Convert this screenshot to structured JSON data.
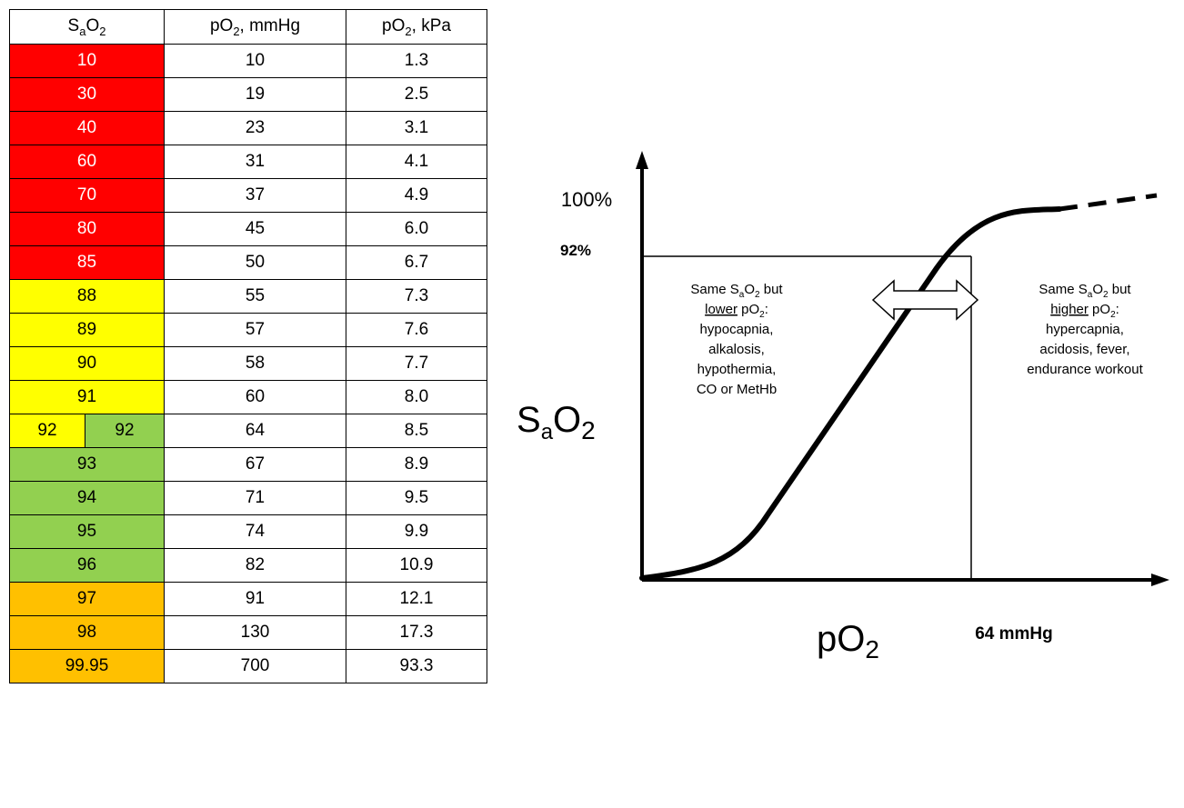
{
  "table": {
    "headers": [
      "SₐO₂",
      "pO₂, mmHg",
      "pO₂, kPa"
    ],
    "rows": [
      {
        "sat": "10",
        "mmhg": "10",
        "kpa": "1.3",
        "zone": "red"
      },
      {
        "sat": "30",
        "mmhg": "19",
        "kpa": "2.5",
        "zone": "red"
      },
      {
        "sat": "40",
        "mmhg": "23",
        "kpa": "3.1",
        "zone": "red"
      },
      {
        "sat": "60",
        "mmhg": "31",
        "kpa": "4.1",
        "zone": "red"
      },
      {
        "sat": "70",
        "mmhg": "37",
        "kpa": "4.9",
        "zone": "red"
      },
      {
        "sat": "80",
        "mmhg": "45",
        "kpa": "6.0",
        "zone": "red"
      },
      {
        "sat": "85",
        "mmhg": "50",
        "kpa": "6.7",
        "zone": "red"
      },
      {
        "sat": "88",
        "mmhg": "55",
        "kpa": "7.3",
        "zone": "yellow"
      },
      {
        "sat": "89",
        "mmhg": "57",
        "kpa": "7.6",
        "zone": "yellow"
      },
      {
        "sat": "90",
        "mmhg": "58",
        "kpa": "7.7",
        "zone": "yellow"
      },
      {
        "sat": "91",
        "mmhg": "60",
        "kpa": "8.0",
        "zone": "yellow"
      },
      {
        "sat": "92",
        "sat2": "92",
        "mmhg": "64",
        "kpa": "8.5",
        "zone": "split"
      },
      {
        "sat": "93",
        "mmhg": "67",
        "kpa": "8.9",
        "zone": "green"
      },
      {
        "sat": "94",
        "mmhg": "71",
        "kpa": "9.5",
        "zone": "green"
      },
      {
        "sat": "95",
        "mmhg": "74",
        "kpa": "9.9",
        "zone": "green"
      },
      {
        "sat": "96",
        "mmhg": "82",
        "kpa": "10.9",
        "zone": "green"
      },
      {
        "sat": "97",
        "mmhg": "91",
        "kpa": "12.1",
        "zone": "orange"
      },
      {
        "sat": "98",
        "mmhg": "130",
        "kpa": "17.3",
        "zone": "orange"
      },
      {
        "sat": "99.95",
        "mmhg": "700",
        "kpa": "93.3",
        "zone": "orange"
      }
    ]
  },
  "colors": {
    "red": "#ff0000",
    "yellow": "#ffff00",
    "green": "#92d050",
    "orange": "#ffc000"
  },
  "chart_data": {
    "type": "line",
    "x": [
      0,
      10,
      19,
      23,
      31,
      37,
      45,
      50,
      55,
      60,
      64,
      67,
      71,
      74,
      82,
      91,
      130
    ],
    "y": [
      0,
      10,
      30,
      40,
      60,
      70,
      80,
      85,
      88,
      91,
      92,
      93,
      94,
      95,
      96,
      97,
      98
    ],
    "ylabel_main": "S",
    "ylabel_sub": "a",
    "ylabel_main2": "O",
    "ylabel_sub2": "2",
    "xlabel_main": "pO",
    "xlabel_sub": "2",
    "y_top_label": "100%",
    "y_marker_label": "92%",
    "x_marker_label": "64 mmHg",
    "grid": false,
    "annotations": {
      "left": {
        "line1a": "Same S",
        "line1sub": "a",
        "line1b": "O",
        "line1sub2": "2",
        "line1c": " but",
        "line2u": "lower",
        "line2b": " pO",
        "line2sub": "2",
        "line2c": ":",
        "line3": "hypocapnia,",
        "line4": "alkalosis,",
        "line5": "hypothermia,",
        "line6": "CO or MetHb"
      },
      "right": {
        "line1a": "Same S",
        "line1sub": "a",
        "line1b": "O",
        "line1sub2": "2",
        "line1c": " but",
        "line2u": "higher",
        "line2b": " pO",
        "line2sub": "2",
        "line2c": ":",
        "line3": "hypercapnia,",
        "line4": "acidosis, fever,",
        "line5": "endurance workout"
      }
    }
  }
}
